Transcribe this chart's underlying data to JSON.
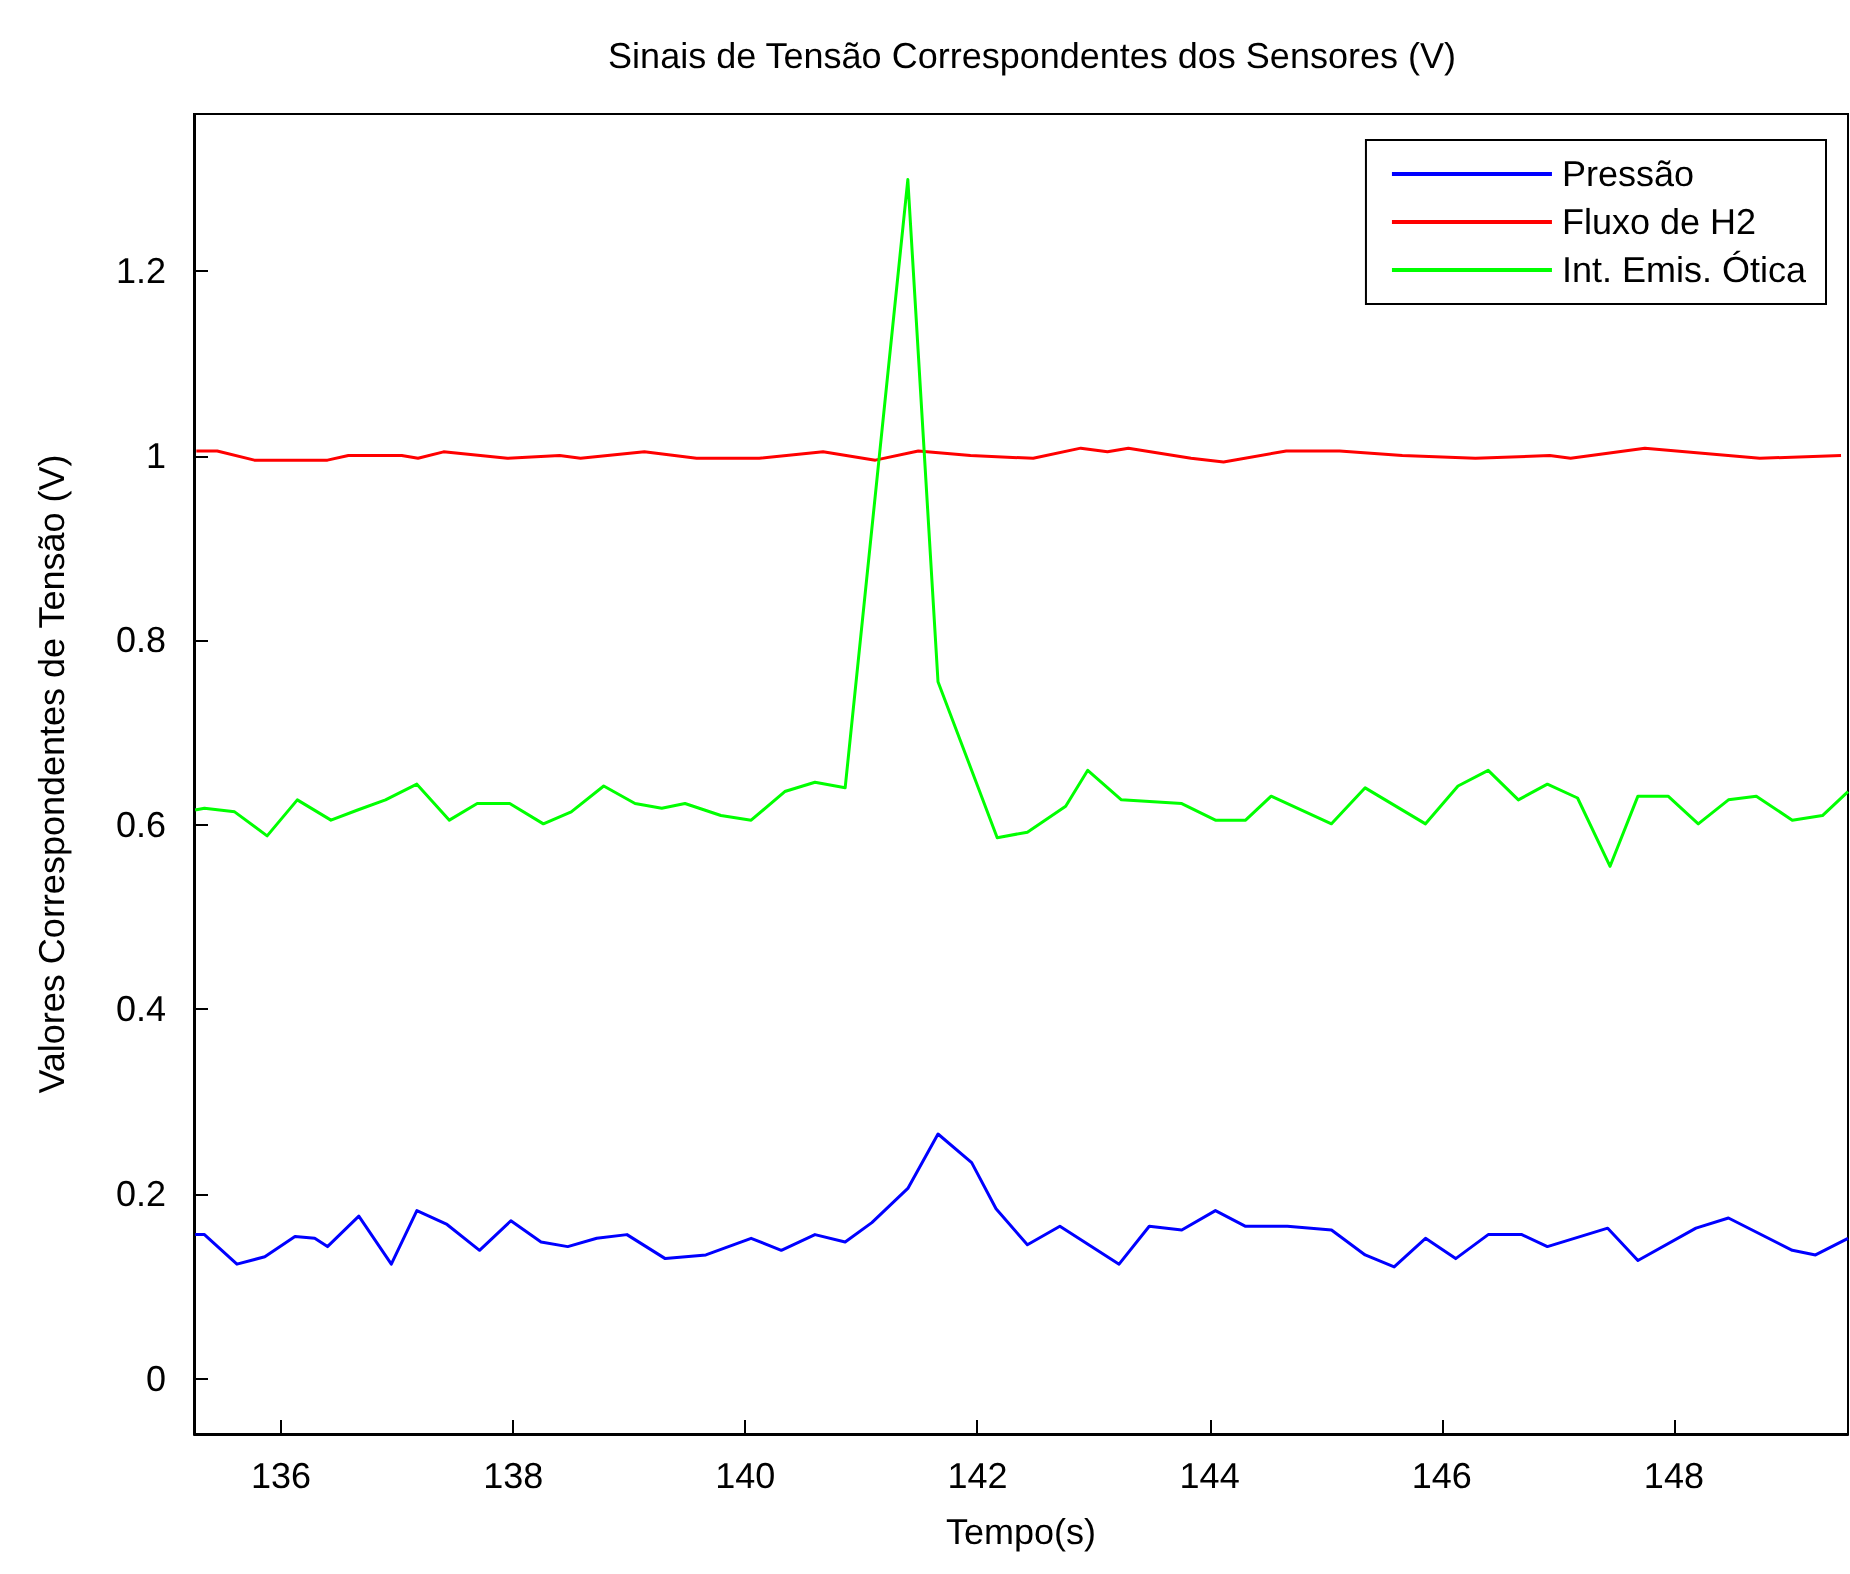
{
  "chart_data": {
    "type": "line",
    "title": "Sinais de Tensão Correspondentes dos Sensores (V)",
    "xlabel": "Tempo(s)",
    "ylabel": "Valores Correspondentes de Tensão (V)",
    "xlim": [
      135.25,
      149.5
    ],
    "xticks": [
      136,
      138,
      140,
      142,
      144,
      146,
      148
    ],
    "ylim": [
      -0.06,
      1.37
    ],
    "yticks": [
      0,
      0.2,
      0.4,
      0.6,
      0.8,
      1,
      1.2
    ],
    "grid": false,
    "legend": "top right",
    "marker": "none",
    "line_style": "solid",
    "series": [
      {
        "name": "Pressão",
        "color": "#0000ff",
        "x": [
          135.26,
          135.34,
          135.62,
          135.86,
          136.12,
          136.29,
          136.4,
          136.67,
          136.95,
          137.17,
          137.43,
          137.71,
          137.98,
          138.24,
          138.47,
          138.72,
          138.98,
          139.31,
          139.66,
          140.05,
          140.31,
          140.6,
          140.86,
          141.09,
          141.4,
          141.66,
          141.95,
          142.16,
          142.43,
          142.71,
          143.22,
          143.48,
          143.76,
          144.05,
          144.31,
          144.67,
          145.05,
          145.34,
          145.59,
          145.86,
          146.12,
          146.4,
          146.69,
          146.91,
          147.43,
          147.69,
          148.19,
          148.47,
          149.02,
          149.22,
          149.5
        ],
        "values": [
          0.156,
          0.156,
          0.124,
          0.132,
          0.154,
          0.152,
          0.143,
          0.176,
          0.124,
          0.182,
          0.167,
          0.139,
          0.171,
          0.148,
          0.143,
          0.152,
          0.156,
          0.13,
          0.134,
          0.152,
          0.139,
          0.156,
          0.148,
          0.169,
          0.206,
          0.265,
          0.234,
          0.184,
          0.145,
          0.165,
          0.124,
          0.165,
          0.161,
          0.182,
          0.165,
          0.165,
          0.161,
          0.134,
          0.121,
          0.152,
          0.13,
          0.156,
          0.156,
          0.143,
          0.163,
          0.128,
          0.163,
          0.174,
          0.139,
          0.134,
          0.152
        ]
      },
      {
        "name": "Fluxo de H2",
        "color": "#ff0000",
        "x": [
          135.27,
          135.45,
          135.77,
          136.4,
          136.58,
          137.04,
          137.18,
          137.4,
          137.95,
          138.4,
          138.58,
          139.13,
          139.58,
          140.12,
          140.67,
          141.12,
          141.49,
          141.94,
          142.48,
          142.89,
          143.12,
          143.3,
          143.84,
          144.12,
          144.66,
          145.12,
          145.66,
          146.29,
          146.93,
          147.11,
          147.75,
          148.74,
          149.44
        ],
        "values": [
          1.005,
          1.005,
          0.995,
          0.995,
          1.0,
          1.0,
          0.997,
          1.004,
          0.997,
          1.0,
          0.997,
          1.004,
          0.997,
          0.997,
          1.004,
          0.995,
          1.005,
          1.0,
          0.997,
          1.008,
          1.004,
          1.008,
          0.997,
          0.993,
          1.005,
          1.005,
          1.0,
          0.997,
          1.0,
          0.997,
          1.008,
          0.997,
          1.0
        ]
      },
      {
        "name": "Int. Emis. Ótica",
        "color": "#00ff00",
        "x": [
          135.26,
          135.34,
          135.6,
          135.88,
          136.14,
          136.43,
          136.66,
          136.9,
          137.17,
          137.45,
          137.69,
          137.97,
          138.26,
          138.5,
          138.78,
          139.05,
          139.28,
          139.48,
          139.79,
          140.05,
          140.34,
          140.6,
          140.86,
          141.4,
          141.66,
          142.17,
          142.43,
          142.76,
          142.95,
          143.24,
          143.76,
          144.05,
          144.31,
          144.53,
          145.05,
          145.34,
          145.86,
          146.14,
          146.4,
          146.66,
          146.91,
          147.17,
          147.45,
          147.69,
          147.95,
          148.21,
          148.47,
          148.71,
          149.02,
          149.28,
          149.5
        ],
        "values": [
          0.616,
          0.618,
          0.614,
          0.588,
          0.627,
          0.605,
          0.616,
          0.627,
          0.644,
          0.605,
          0.623,
          0.623,
          0.601,
          0.614,
          0.642,
          0.623,
          0.618,
          0.623,
          0.61,
          0.605,
          0.636,
          0.646,
          0.64,
          1.299,
          0.755,
          0.586,
          0.592,
          0.62,
          0.659,
          0.627,
          0.623,
          0.605,
          0.605,
          0.631,
          0.601,
          0.64,
          0.601,
          0.642,
          0.659,
          0.627,
          0.644,
          0.629,
          0.555,
          0.631,
          0.631,
          0.601,
          0.627,
          0.631,
          0.605,
          0.61,
          0.636
        ]
      }
    ]
  }
}
